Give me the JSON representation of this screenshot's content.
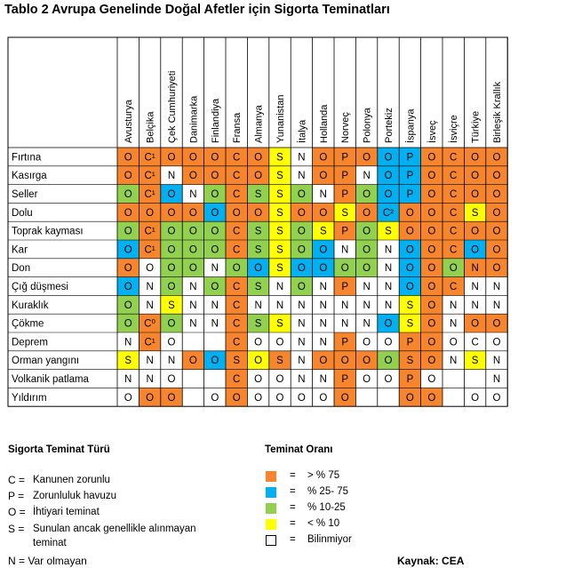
{
  "title": "Tablo 2  Avrupa Genelinde Doğal Afetler için Sigorta Teminatları",
  "countries": [
    "Avusturya",
    "Belçika",
    "Çek Cumhuriyeti",
    "Danimarka",
    "Finlandiya",
    "Fransa",
    "Almanya",
    "Yunanistan",
    "İtalya",
    "Hollanda",
    "Norveç",
    "Polonya",
    "Portekiz",
    "İspanya",
    "İsveç",
    "İsviçre",
    "Türkiye",
    "Birleşik Krallık"
  ],
  "colors": {
    "orange": "#f7852e",
    "blue": "#00b0f0",
    "green": "#92d050",
    "yellow": "#ffff00",
    "white": "#ffffff"
  },
  "rows": [
    {
      "name": "Fırtına",
      "cells": [
        [
          "O",
          "orange"
        ],
        [
          "C¹",
          "orange"
        ],
        [
          "O",
          "orange"
        ],
        [
          "O",
          "orange"
        ],
        [
          "O",
          "orange"
        ],
        [
          "C",
          "orange"
        ],
        [
          "O",
          "orange"
        ],
        [
          "S",
          "yellow"
        ],
        [
          "N",
          ""
        ],
        [
          "O",
          "orange"
        ],
        [
          "P",
          "orange"
        ],
        [
          "O",
          "orange"
        ],
        [
          "O",
          "blue"
        ],
        [
          "P",
          "blue"
        ],
        [
          "O",
          "orange"
        ],
        [
          "C",
          "orange"
        ],
        [
          "O",
          "orange"
        ],
        [
          "O",
          "orange"
        ]
      ]
    },
    {
      "name": "Kasırga",
      "cells": [
        [
          "O",
          "orange"
        ],
        [
          "C¹",
          "orange"
        ],
        [
          "N",
          ""
        ],
        [
          "O",
          "orange"
        ],
        [
          "O",
          "orange"
        ],
        [
          "C",
          "orange"
        ],
        [
          "O",
          "orange"
        ],
        [
          "S",
          "yellow"
        ],
        [
          "N",
          ""
        ],
        [
          "O",
          "orange"
        ],
        [
          "P",
          "orange"
        ],
        [
          "N",
          ""
        ],
        [
          "O",
          "blue"
        ],
        [
          "P",
          "blue"
        ],
        [
          "O",
          "orange"
        ],
        [
          "C",
          "orange"
        ],
        [
          "O",
          "orange"
        ],
        [
          "O",
          "orange"
        ]
      ]
    },
    {
      "name": "Seller",
      "cells": [
        [
          "O",
          "green"
        ],
        [
          "C¹",
          "orange"
        ],
        [
          "O",
          "blue"
        ],
        [
          "N",
          ""
        ],
        [
          "O",
          "green"
        ],
        [
          "C",
          "orange"
        ],
        [
          "S",
          "green"
        ],
        [
          "S",
          "yellow"
        ],
        [
          "O",
          "green"
        ],
        [
          "N",
          ""
        ],
        [
          "P",
          "orange"
        ],
        [
          "O",
          "green"
        ],
        [
          "O",
          "blue"
        ],
        [
          "P",
          "blue"
        ],
        [
          "O",
          "orange"
        ],
        [
          "C",
          "orange"
        ],
        [
          "O",
          "orange"
        ],
        [
          "O",
          "orange"
        ]
      ]
    },
    {
      "name": "Dolu",
      "cells": [
        [
          "O",
          "orange"
        ],
        [
          "O",
          "orange"
        ],
        [
          "O",
          "orange"
        ],
        [
          "O",
          "orange"
        ],
        [
          "O",
          "blue"
        ],
        [
          "O",
          "orange"
        ],
        [
          "O",
          "orange"
        ],
        [
          "S",
          "yellow"
        ],
        [
          "O",
          "orange"
        ],
        [
          "O",
          "orange"
        ],
        [
          "S",
          "yellow"
        ],
        [
          "O",
          "orange"
        ],
        [
          "C²",
          "blue"
        ],
        [
          "O",
          "orange"
        ],
        [
          "O",
          "orange"
        ],
        [
          "C",
          "orange"
        ],
        [
          "S",
          "yellow"
        ],
        [
          "O",
          "orange"
        ]
      ]
    },
    {
      "name": "Toprak kayması",
      "cells": [
        [
          "O",
          "green"
        ],
        [
          "C¹",
          "orange"
        ],
        [
          "O",
          "green"
        ],
        [
          "O",
          "green"
        ],
        [
          "O",
          "green"
        ],
        [
          "C",
          "orange"
        ],
        [
          "S",
          "green"
        ],
        [
          "S",
          "yellow"
        ],
        [
          "O",
          "green"
        ],
        [
          "S",
          "yellow"
        ],
        [
          "P",
          "orange"
        ],
        [
          "O",
          "green"
        ],
        [
          "S",
          "yellow"
        ],
        [
          "O",
          "orange"
        ],
        [
          "O",
          "orange"
        ],
        [
          "C",
          "orange"
        ],
        [
          "O",
          "orange"
        ],
        [
          "O",
          "orange"
        ]
      ]
    },
    {
      "name": "Kar",
      "cells": [
        [
          "O",
          "blue"
        ],
        [
          "C¹",
          "orange"
        ],
        [
          "O",
          "green"
        ],
        [
          "O",
          "green"
        ],
        [
          "O",
          "green"
        ],
        [
          "C",
          "orange"
        ],
        [
          "S",
          "green"
        ],
        [
          "S",
          "yellow"
        ],
        [
          "O",
          "green"
        ],
        [
          "O",
          "blue"
        ],
        [
          "N",
          ""
        ],
        [
          "O",
          "green"
        ],
        [
          "N",
          ""
        ],
        [
          "O",
          "blue"
        ],
        [
          "O",
          "orange"
        ],
        [
          "C",
          "orange"
        ],
        [
          "O",
          "blue"
        ],
        [
          "O",
          "orange"
        ]
      ]
    },
    {
      "name": "Don",
      "cells": [
        [
          "O",
          "orange"
        ],
        [
          "O",
          ""
        ],
        [
          "O",
          "green"
        ],
        [
          "O",
          "green"
        ],
        [
          "N",
          ""
        ],
        [
          "O",
          "green"
        ],
        [
          "O",
          "blue"
        ],
        [
          "S",
          "yellow"
        ],
        [
          "O",
          "blue"
        ],
        [
          "O",
          "blue"
        ],
        [
          "O",
          "green"
        ],
        [
          "O",
          "green"
        ],
        [
          "N",
          ""
        ],
        [
          "O",
          "blue"
        ],
        [
          "O",
          "orange"
        ],
        [
          "O",
          "green"
        ],
        [
          "N",
          "orange"
        ],
        [
          "O",
          "orange"
        ]
      ]
    },
    {
      "name": "Çığ düşmesi",
      "cells": [
        [
          "O",
          "blue"
        ],
        [
          "N",
          ""
        ],
        [
          "O",
          "green"
        ],
        [
          "N",
          ""
        ],
        [
          "O",
          "green"
        ],
        [
          "C",
          "orange"
        ],
        [
          "S",
          "green"
        ],
        [
          "N",
          ""
        ],
        [
          "O",
          "green"
        ],
        [
          "N",
          ""
        ],
        [
          "P",
          "orange"
        ],
        [
          "N",
          ""
        ],
        [
          "N",
          ""
        ],
        [
          "O",
          "blue"
        ],
        [
          "O",
          "orange"
        ],
        [
          "C",
          "orange"
        ],
        [
          "N",
          ""
        ],
        [
          "N",
          ""
        ]
      ]
    },
    {
      "name": "Kuraklık",
      "cells": [
        [
          "O",
          "green"
        ],
        [
          "N",
          ""
        ],
        [
          "S",
          "yellow"
        ],
        [
          "N",
          ""
        ],
        [
          "N",
          ""
        ],
        [
          "C",
          "orange"
        ],
        [
          "N",
          ""
        ],
        [
          "N",
          ""
        ],
        [
          "N",
          ""
        ],
        [
          "N",
          ""
        ],
        [
          "N",
          ""
        ],
        [
          "N",
          ""
        ],
        [
          "N",
          ""
        ],
        [
          "S",
          "yellow"
        ],
        [
          "O",
          "orange"
        ],
        [
          "N",
          ""
        ],
        [
          "N",
          ""
        ],
        [
          "N",
          ""
        ]
      ]
    },
    {
      "name": "Çökme",
      "cells": [
        [
          "O",
          "green"
        ],
        [
          "C⁰",
          "orange"
        ],
        [
          "O",
          "green"
        ],
        [
          "N",
          ""
        ],
        [
          "N",
          ""
        ],
        [
          "C",
          "orange"
        ],
        [
          "S",
          "green"
        ],
        [
          "S",
          "yellow"
        ],
        [
          "N",
          ""
        ],
        [
          "N",
          ""
        ],
        [
          "N",
          ""
        ],
        [
          "N",
          ""
        ],
        [
          "O",
          "blue"
        ],
        [
          "S",
          "yellow"
        ],
        [
          "O",
          "orange"
        ],
        [
          "N",
          ""
        ],
        [
          "O",
          "orange"
        ],
        [
          "O",
          "orange"
        ]
      ]
    },
    {
      "name": "Deprem",
      "cells": [
        [
          "N",
          ""
        ],
        [
          "C¹",
          "orange"
        ],
        [
          "O",
          ""
        ],
        [
          "",
          ""
        ],
        [
          "",
          ""
        ],
        [
          "C",
          "orange"
        ],
        [
          "O",
          ""
        ],
        [
          "O",
          ""
        ],
        [
          "N",
          ""
        ],
        [
          "N",
          ""
        ],
        [
          "P",
          "orange"
        ],
        [
          "O",
          ""
        ],
        [
          "O",
          ""
        ],
        [
          "P",
          "orange"
        ],
        [
          "O",
          "orange"
        ],
        [
          "O",
          ""
        ],
        [
          "C",
          ""
        ],
        [
          "O",
          ""
        ]
      ]
    },
    {
      "name": "Orman yangını",
      "cells": [
        [
          "S",
          "yellow"
        ],
        [
          "N",
          ""
        ],
        [
          "N",
          ""
        ],
        [
          "O",
          "orange"
        ],
        [
          "O",
          "blue"
        ],
        [
          "S",
          "orange"
        ],
        [
          "O",
          "yellow"
        ],
        [
          "S",
          "orange"
        ],
        [
          "N",
          ""
        ],
        [
          "O",
          "orange"
        ],
        [
          "O",
          "orange"
        ],
        [
          "O",
          "orange"
        ],
        [
          "O",
          "green"
        ],
        [
          "S",
          "orange"
        ],
        [
          "O",
          "orange"
        ],
        [
          "N",
          ""
        ],
        [
          "S",
          "yellow"
        ],
        [
          "N",
          ""
        ]
      ]
    },
    {
      "name": "Volkanik patlama",
      "cells": [
        [
          "N",
          ""
        ],
        [
          "N",
          ""
        ],
        [
          "O",
          ""
        ],
        [
          "",
          ""
        ],
        [
          "",
          ""
        ],
        [
          "C",
          "orange"
        ],
        [
          "O",
          ""
        ],
        [
          "O",
          ""
        ],
        [
          "N",
          ""
        ],
        [
          "N",
          ""
        ],
        [
          "P",
          "orange"
        ],
        [
          "O",
          ""
        ],
        [
          "O",
          ""
        ],
        [
          "P",
          "orange"
        ],
        [
          "O",
          ""
        ],
        [
          "",
          ""
        ],
        [
          "",
          ""
        ],
        [
          "N",
          ""
        ]
      ]
    },
    {
      "name": "Yıldırım",
      "cells": [
        [
          "O",
          ""
        ],
        [
          "O",
          "orange"
        ],
        [
          "O",
          "orange"
        ],
        [
          "",
          ""
        ],
        [
          "O",
          ""
        ],
        [
          "O",
          "orange"
        ],
        [
          "O",
          ""
        ],
        [
          "O",
          ""
        ],
        [
          "O",
          ""
        ],
        [
          "O",
          ""
        ],
        [
          "O",
          "orange"
        ],
        [
          "",
          ""
        ],
        [
          "",
          ""
        ],
        [
          "O",
          "orange"
        ],
        [
          "O",
          "orange"
        ],
        [
          "",
          ""
        ],
        [
          "O",
          ""
        ],
        [
          "O",
          ""
        ]
      ]
    }
  ],
  "legend": {
    "type_title": "Sigorta Teminat Türü",
    "types": [
      {
        "key": "C =",
        "label": "Kanunen zorunlu"
      },
      {
        "key": "P =",
        "label": "Zorunluluk havuzu"
      },
      {
        "key": "O =",
        "label": "İhtiyari teminat"
      },
      {
        "key": "S =",
        "label": "Sunulan ancak genellikle alınmayan"
      },
      {
        "key": "",
        "label": "teminat"
      },
      {
        "key": "N = Var olmayan",
        "label": ""
      }
    ],
    "rate_title": "Teminat Oranı",
    "rates": [
      {
        "color": "orange",
        "label": "> % 75"
      },
      {
        "color": "blue",
        "label": "% 25- 75"
      },
      {
        "color": "green",
        "label": "% 10-25"
      },
      {
        "color": "yellow",
        "label": "< % 10"
      },
      {
        "color": "white",
        "label": "Bilinmiyor"
      }
    ],
    "eq": "="
  },
  "source": "Kaynak: CEA"
}
